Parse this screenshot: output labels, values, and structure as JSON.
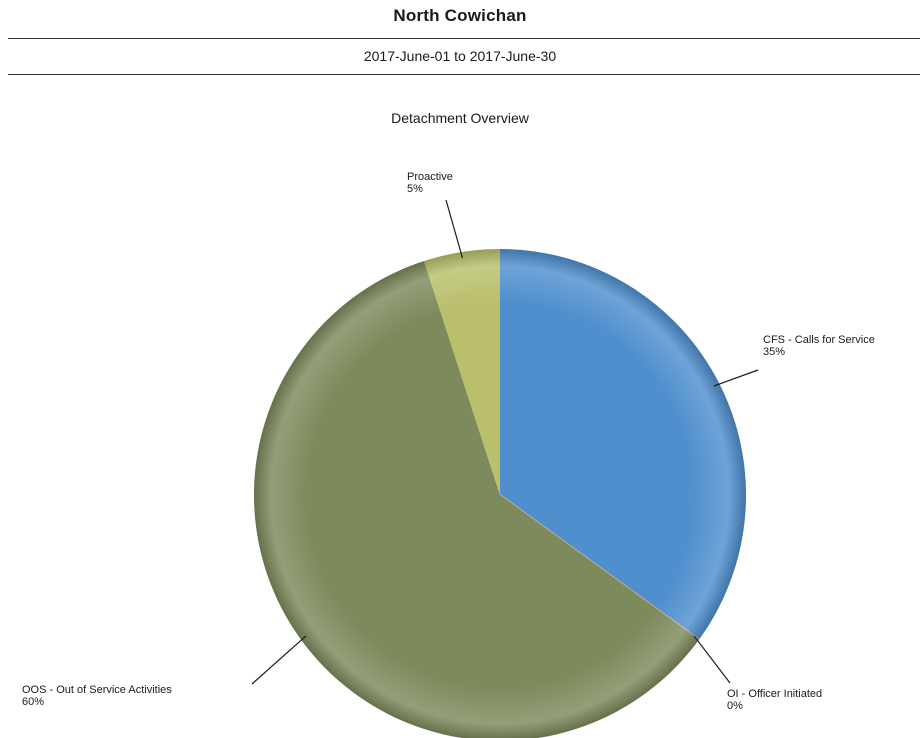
{
  "report": {
    "title": "North Cowichan",
    "date_range": "2017-June-01 to 2017-June-30"
  },
  "chart_data": {
    "type": "pie",
    "title": "Detachment Overview",
    "slices": [
      {
        "label": "CFS - Calls for Service",
        "percent_label": "35%",
        "value": 35,
        "color": "#4f8fce"
      },
      {
        "label": "OI - Officer Initiated",
        "percent_label": "0%",
        "value": 0,
        "color": "#c9a9a0"
      },
      {
        "label": "OOS - Out of Service Activities",
        "percent_label": "60%",
        "value": 60,
        "color": "#7c8a5c"
      },
      {
        "label": "Proactive",
        "percent_label": "5%",
        "value": 5,
        "color": "#b9bf6a"
      }
    ]
  }
}
